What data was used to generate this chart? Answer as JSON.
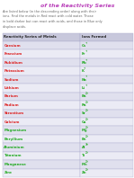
{
  "title": "of the Reactivity Series",
  "title_color": "#bb44bb",
  "subtitle_lines": [
    "Are listed below (in the descending order) along with their",
    "ions. Find the metals in Red react with cold water. Those",
    "in bold darker but can react with acids, and those in Blue only",
    "displace acids."
  ],
  "subtitle_color": "#666666",
  "col1_header": "Reactivity Series of Metals",
  "col2_header": "Ions Formed",
  "header_bg": "#c8c8dc",
  "row_bg_a": "#e0e0ee",
  "row_bg_b": "#ebebf5",
  "rows": [
    {
      "metal": "Caesium",
      "ion": "Cs+",
      "metal_color": "#dd2222",
      "ion_color": "#22aa22"
    },
    {
      "metal": "Francium",
      "ion": "Fr+",
      "metal_color": "#dd2222",
      "ion_color": "#22aa22"
    },
    {
      "metal": "Rubidium",
      "ion": "Rb+",
      "metal_color": "#dd2222",
      "ion_color": "#22aa22"
    },
    {
      "metal": "Potassium",
      "ion": "K+",
      "metal_color": "#dd2222",
      "ion_color": "#22aa22"
    },
    {
      "metal": "Sodium",
      "ion": "Na+",
      "metal_color": "#dd2222",
      "ion_color": "#22aa22"
    },
    {
      "metal": "Lithium",
      "ion": "Li+",
      "metal_color": "#dd2222",
      "ion_color": "#22aa22"
    },
    {
      "metal": "Barium",
      "ion": "Ba2+",
      "metal_color": "#dd2222",
      "ion_color": "#22aa22"
    },
    {
      "metal": "Radium",
      "ion": "Ra2+",
      "metal_color": "#dd2222",
      "ion_color": "#22aa22"
    },
    {
      "metal": "Strontium",
      "ion": "Sr2+",
      "metal_color": "#dd2222",
      "ion_color": "#22aa22"
    },
    {
      "metal": "Calcium",
      "ion": "Ca2+",
      "metal_color": "#dd2222",
      "ion_color": "#22aa22"
    },
    {
      "metal": "Magnesium",
      "ion": "Mg2+",
      "metal_color": "#22aa22",
      "ion_color": "#22aa22"
    },
    {
      "metal": "Beryllium",
      "ion": "Be2+",
      "metal_color": "#22aa22",
      "ion_color": "#22aa22"
    },
    {
      "metal": "Aluminium",
      "ion": "Al3+",
      "metal_color": "#22aa22",
      "ion_color": "#22aa22"
    },
    {
      "metal": "Titanium",
      "ion": "Ti2+",
      "metal_color": "#22aa22",
      "ion_color": "#22aa22"
    },
    {
      "metal": "Manganese",
      "ion": "Mn2+",
      "metal_color": "#22aa22",
      "ion_color": "#22aa22"
    },
    {
      "metal": "Zinc",
      "ion": "Zn2+",
      "metal_color": "#22aa22",
      "ion_color": "#22aa22"
    }
  ],
  "bg_color": "#ffffff",
  "border_color": "#aaaacc",
  "figsize": [
    1.49,
    1.98
  ],
  "dpi": 100
}
